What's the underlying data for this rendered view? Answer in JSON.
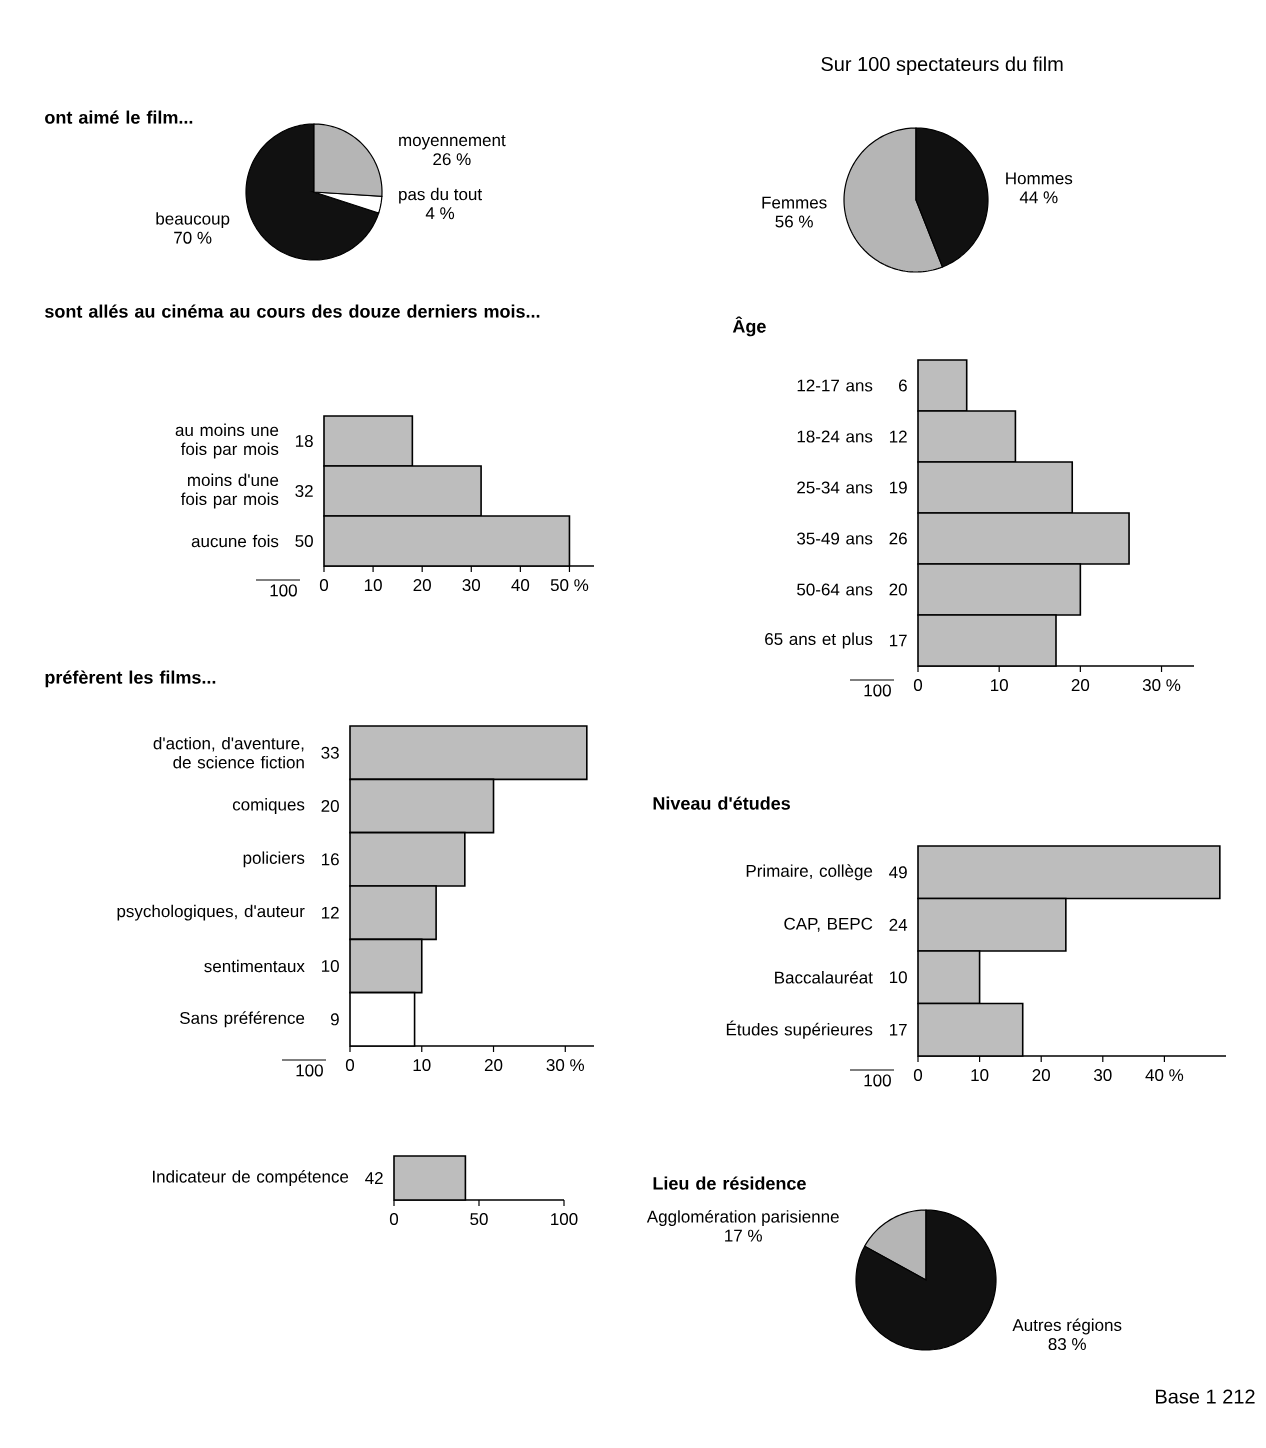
{
  "chart_data": [
    {
      "type": "pie",
      "title": "ont aimé le film...",
      "categories": [
        "beaucoup",
        "pas du tout",
        "moyennement"
      ],
      "values": [
        70,
        4,
        26
      ],
      "value_labels": [
        "70 %",
        "4 %",
        "26 %"
      ],
      "colors": [
        "#111111",
        "#ffffff",
        "#b5b5b5"
      ]
    },
    {
      "type": "pie",
      "categories": [
        "Femmes",
        "Hommes"
      ],
      "values": [
        56,
        44
      ],
      "value_labels": [
        "56 %",
        "44 %"
      ],
      "colors": [
        "#b5b5b5",
        "#111111"
      ],
      "annotations": [
        "Sur 100 spectateurs du film"
      ]
    },
    {
      "type": "bar",
      "orientation": "horizontal",
      "title": "sont allés au cinéma au cours des douze derniers mois...",
      "categories": [
        "au moins une fois par mois",
        "moins d'une fois par mois",
        "aucune fois"
      ],
      "values": [
        18,
        32,
        50
      ],
      "colors": [
        "#bdbdbd",
        "#bdbdbd",
        "#bdbdbd"
      ],
      "data_labels": true,
      "xlim": [
        0,
        55
      ],
      "xticks": [
        0,
        10,
        20,
        30,
        40,
        {
          "value": 50,
          "label": "50 %"
        }
      ],
      "annotations": [
        "100"
      ]
    },
    {
      "type": "bar",
      "orientation": "horizontal",
      "title": "Âge",
      "categories": [
        "12-17 ans",
        "18-24 ans",
        "25-34 ans",
        "35-49 ans",
        "50-64 ans",
        "65 ans et plus"
      ],
      "values": [
        6,
        12,
        19,
        26,
        20,
        17
      ],
      "colors": [
        "#bdbdbd",
        "#bdbdbd",
        "#bdbdbd",
        "#bdbdbd",
        "#bdbdbd",
        "#bdbdbd"
      ],
      "data_labels": true,
      "xlim": [
        0,
        34
      ],
      "xticks": [
        0,
        10,
        20,
        {
          "value": 30,
          "label": "30 %"
        }
      ],
      "annotations": [
        "100"
      ]
    },
    {
      "type": "bar",
      "orientation": "horizontal",
      "title": "préfèrent les films...",
      "categories": [
        "d'action, d'aventure, de science fiction",
        "comiques",
        "policiers",
        "psychologiques, d'auteur",
        "sentimentaux",
        "Sans préférence"
      ],
      "values": [
        33,
        20,
        16,
        12,
        10,
        9
      ],
      "colors": [
        "#bdbdbd",
        "#bdbdbd",
        "#bdbdbd",
        "#bdbdbd",
        "#bdbdbd",
        "#ffffff"
      ],
      "data_labels": true,
      "xlim": [
        0,
        34
      ],
      "xticks": [
        0,
        10,
        20,
        {
          "value": 30,
          "label": "30 %"
        }
      ],
      "annotations": [
        "100"
      ]
    },
    {
      "type": "bar",
      "orientation": "horizontal",
      "title": "Niveau d'études",
      "categories": [
        "Primaire, collège",
        "CAP, BEPC",
        "Baccalauréat",
        "Études supérieures"
      ],
      "values": [
        49,
        24,
        10,
        17
      ],
      "colors": [
        "#bdbdbd",
        "#bdbdbd",
        "#bdbdbd",
        "#bdbdbd"
      ],
      "data_labels": true,
      "xlim": [
        0,
        50
      ],
      "xticks": [
        0,
        10,
        20,
        30,
        {
          "value": 40,
          "label": "40 %"
        }
      ],
      "annotations": [
        "100"
      ]
    },
    {
      "type": "bar",
      "orientation": "horizontal",
      "categories": [
        "Indicateur de compétence"
      ],
      "values": [
        42
      ],
      "colors": [
        "#bdbdbd"
      ],
      "data_labels": true,
      "xlim": [
        0,
        100
      ],
      "xticks": [
        0,
        50,
        100
      ]
    },
    {
      "type": "pie",
      "title": "Lieu de résidence",
      "categories": [
        "Agglomération parisienne",
        "Autres régions"
      ],
      "values": [
        17,
        83
      ],
      "value_labels": [
        "17 %",
        "83 %"
      ],
      "colors": [
        "#b5b5b5",
        "#111111"
      ],
      "annotations": [
        "Base 1 212"
      ]
    }
  ]
}
